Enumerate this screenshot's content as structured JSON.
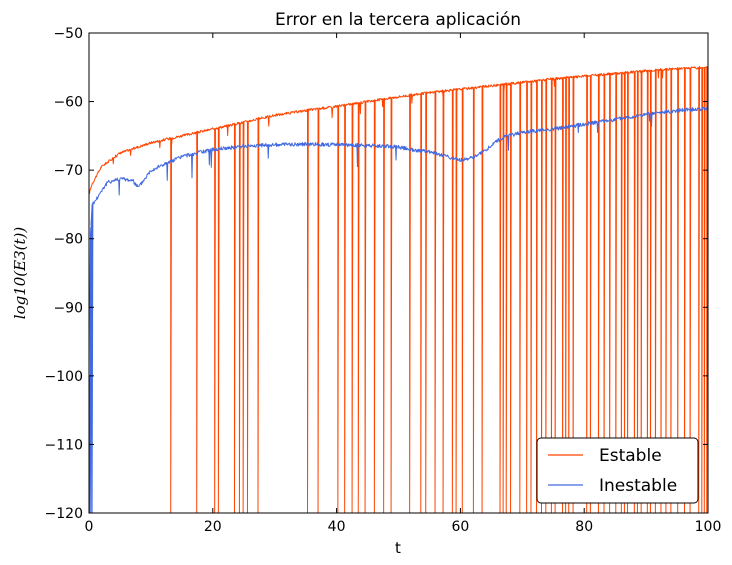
{
  "chart_data": {
    "type": "line",
    "title": "Error en la tercera aplicación",
    "xlabel": "t",
    "ylabel": "log10(E3(t))",
    "xlim": [
      0,
      100
    ],
    "ylim": [
      -120,
      -50
    ],
    "x_ticks": [
      "0",
      "20",
      "40",
      "60",
      "80",
      "100"
    ],
    "y_ticks": [
      "−50",
      "−60",
      "−70",
      "−80",
      "−90",
      "−100",
      "−110",
      "−120"
    ],
    "legend_position": "lower-right",
    "grid": false,
    "series": [
      {
        "name": "Estable",
        "color": "#FF4500",
        "x": [
          0,
          0.5,
          2,
          5,
          10,
          15,
          20,
          25,
          30,
          35,
          40,
          45,
          50,
          55,
          60,
          65,
          70,
          75,
          80,
          85,
          90,
          95,
          100
        ],
        "y": [
          -73.5,
          -72,
          -69.5,
          -67.5,
          -66,
          -65,
          -64,
          -63,
          -62,
          -61.3,
          -60.7,
          -60,
          -59.3,
          -58.7,
          -58.2,
          -57.7,
          -57.2,
          -56.7,
          -56.3,
          -55.9,
          -55.5,
          -55.2,
          -55
        ],
        "drops_to_floor_at": [
          13.2,
          17.4,
          20.3,
          20.9,
          23.5,
          24.3,
          24.9,
          25.6,
          27.3,
          35.3,
          37.0,
          40.2,
          41.3,
          42.5,
          43.5,
          44.6,
          46.1,
          47.6,
          48.8,
          51.8,
          53.6,
          54.4,
          55.9,
          57.2,
          58.7,
          59.3,
          60.3,
          62.1,
          63.5,
          66.4,
          66.9,
          67.4,
          68.1,
          69.6,
          70.7,
          71.4,
          72.3,
          73.1,
          73.8,
          74.7,
          75.3,
          76.5,
          77.0,
          77.5,
          78.2,
          80.4,
          81.0,
          82.3,
          83.2,
          84.1,
          85.1,
          86.0,
          86.5,
          87.0,
          88.1,
          88.6,
          89.2,
          90.2,
          90.7,
          91.5,
          92.4,
          93.2,
          94.0,
          95.1,
          96.2,
          97.1,
          98.5,
          99.0,
          99.4,
          99.8
        ]
      },
      {
        "name": "Inestable",
        "color": "#4169E1",
        "x": [
          0,
          0.2,
          0.5,
          1,
          2,
          3,
          5,
          7,
          8,
          10,
          15,
          20,
          25,
          30,
          35,
          40,
          45,
          50,
          52,
          55,
          57,
          60,
          62,
          64,
          65,
          66,
          67,
          70,
          75,
          80,
          85,
          90,
          95,
          100
        ],
        "y": [
          -120,
          -80,
          -75,
          -74.5,
          -73,
          -71.8,
          -71.2,
          -71.5,
          -72.5,
          -70,
          -68,
          -67,
          -66.5,
          -66.3,
          -66.2,
          -66.3,
          -66.4,
          -66.6,
          -67,
          -67.3,
          -67.8,
          -68.5,
          -68.2,
          -67.2,
          -66.3,
          -65.7,
          -65.2,
          -64.5,
          -64,
          -63.3,
          -62.6,
          -61.9,
          -61.3,
          -61
        ],
        "drops_to_floor_at": [
          0.1,
          0.3,
          0.5
        ]
      }
    ]
  }
}
